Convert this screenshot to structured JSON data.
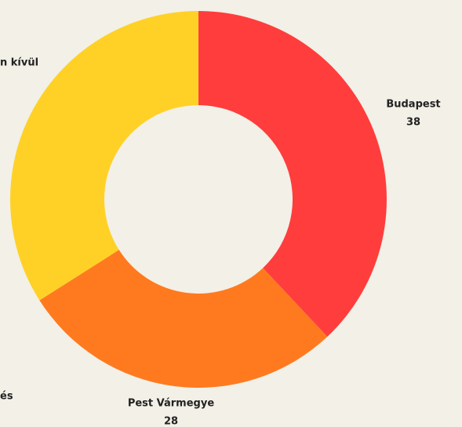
{
  "chart_data": {
    "type": "donut",
    "categories": [
      "Budapest",
      "Pest Vármegye",
      "n kívül"
    ],
    "values": [
      38,
      28,
      34
    ],
    "colors": [
      "#ff3d3d",
      "#ff7a1f",
      "#ffd127"
    ],
    "annotation": "és"
  }
}
